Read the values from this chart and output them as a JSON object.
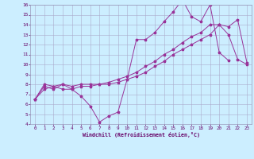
{
  "xlabel": "Windchill (Refroidissement éolien,°C)",
  "bg_color": "#cceeff",
  "grid_color": "#aaaacc",
  "line_color": "#993399",
  "xlim": [
    -0.5,
    23.5
  ],
  "ylim": [
    4,
    16
  ],
  "xticks": [
    0,
    1,
    2,
    3,
    4,
    5,
    6,
    7,
    8,
    9,
    10,
    11,
    12,
    13,
    14,
    15,
    16,
    17,
    18,
    19,
    20,
    21,
    22,
    23
  ],
  "yticks": [
    4,
    5,
    6,
    7,
    8,
    9,
    10,
    11,
    12,
    13,
    14,
    15,
    16
  ],
  "series1_x": [
    0,
    1,
    2,
    3,
    4,
    5,
    6,
    7,
    8,
    9,
    10,
    11,
    12,
    13,
    14,
    15,
    16,
    17,
    18,
    19,
    20,
    21,
    22,
    23
  ],
  "series1_y": [
    6.5,
    8.0,
    7.8,
    8.0,
    7.5,
    6.8,
    5.8,
    4.2,
    4.8,
    5.2,
    8.5,
    12.5,
    12.5,
    13.2,
    14.3,
    15.3,
    16.5,
    14.8,
    14.3,
    16.0,
    11.2,
    10.4,
    null,
    null
  ],
  "series2_x": [
    0,
    1,
    2,
    3,
    4,
    5,
    6,
    7,
    8,
    9,
    10,
    11,
    12,
    13,
    14,
    15,
    16,
    17,
    18,
    19,
    20,
    21,
    22,
    23
  ],
  "series2_y": [
    6.5,
    7.8,
    7.5,
    8.0,
    7.8,
    8.0,
    8.0,
    8.0,
    8.2,
    8.5,
    8.8,
    9.2,
    9.8,
    10.3,
    11.0,
    11.5,
    12.2,
    12.8,
    13.2,
    14.0,
    14.0,
    13.8,
    14.5,
    10.2
  ],
  "series3_x": [
    0,
    1,
    2,
    3,
    4,
    5,
    6,
    7,
    8,
    9,
    10,
    11,
    12,
    13,
    14,
    15,
    16,
    17,
    18,
    19,
    20,
    21,
    22,
    23
  ],
  "series3_y": [
    6.5,
    7.5,
    7.8,
    7.5,
    7.5,
    7.8,
    7.8,
    8.0,
    8.0,
    8.2,
    8.5,
    8.8,
    9.2,
    9.8,
    10.3,
    11.0,
    11.5,
    12.0,
    12.5,
    13.0,
    14.0,
    13.0,
    10.5,
    10.0
  ]
}
